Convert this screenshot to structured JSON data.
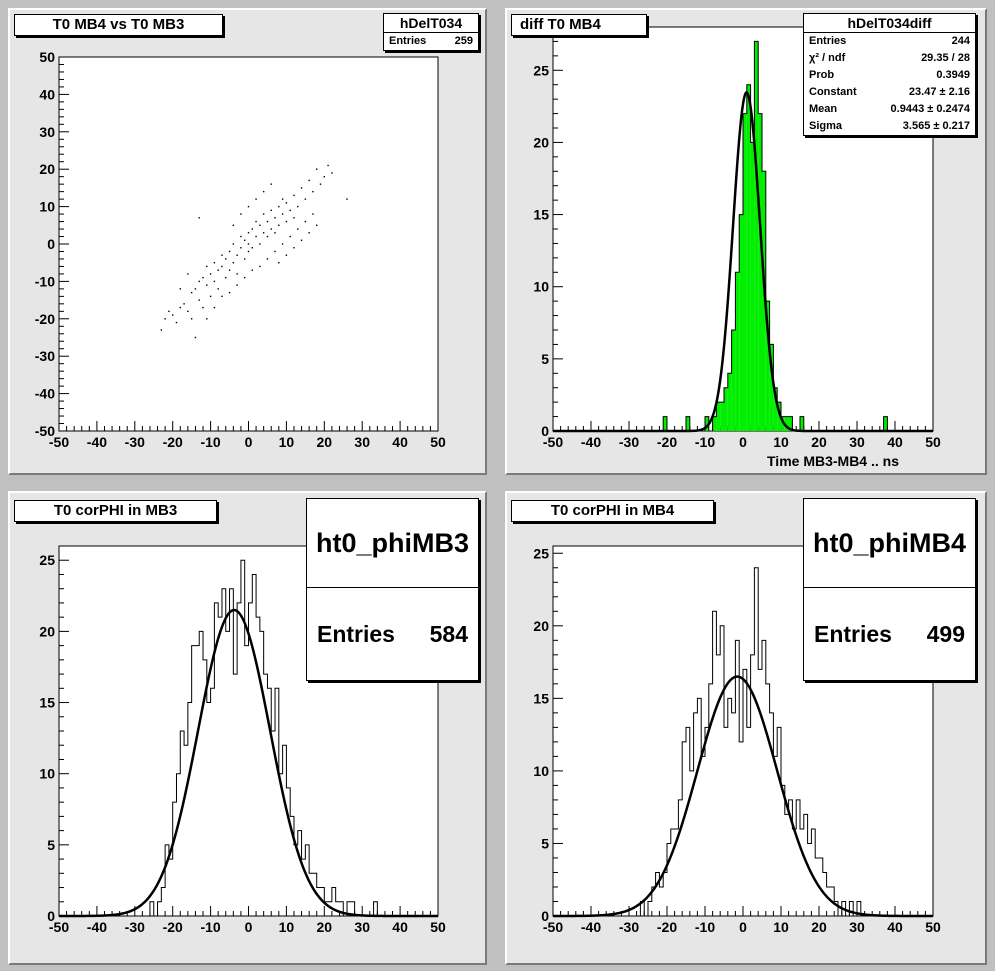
{
  "chart_data": [
    {
      "type": "scatter",
      "title": "T0 MB4 vs T0 MB3",
      "stats": {
        "name": "hDelT034",
        "entries_label": "Entries",
        "entries": "259"
      },
      "xlim": [
        -50,
        50
      ],
      "ylim": [
        -50,
        50
      ],
      "xticks": [
        "-50",
        "-40",
        "-30",
        "-20",
        "-10",
        "0",
        "10",
        "20",
        "30",
        "40",
        "50"
      ],
      "yticks": [
        "-50",
        "-40",
        "-30",
        "-20",
        "-10",
        "0",
        "10",
        "20",
        "30",
        "40",
        "50"
      ],
      "points": [
        [
          -23,
          -23
        ],
        [
          -22,
          -20
        ],
        [
          -21,
          -18
        ],
        [
          -20,
          -19
        ],
        [
          -19,
          -21
        ],
        [
          -18,
          -17
        ],
        [
          -17,
          -16
        ],
        [
          -16,
          -18
        ],
        [
          -15,
          -13
        ],
        [
          -15,
          -20
        ],
        [
          -14,
          -12
        ],
        [
          -14,
          -25
        ],
        [
          -13,
          -15
        ],
        [
          -13,
          -10
        ],
        [
          -12,
          -9
        ],
        [
          -12,
          -17
        ],
        [
          -11,
          -11
        ],
        [
          -11,
          -6
        ],
        [
          -10,
          -14
        ],
        [
          -10,
          -8
        ],
        [
          -9,
          -10
        ],
        [
          -9,
          -5
        ],
        [
          -8,
          -7
        ],
        [
          -8,
          -12
        ],
        [
          -7,
          -6
        ],
        [
          -7,
          -3
        ],
        [
          -6,
          -9
        ],
        [
          -6,
          -4
        ],
        [
          -5,
          -2
        ],
        [
          -5,
          -7
        ],
        [
          -4,
          -5
        ],
        [
          -4,
          0
        ],
        [
          -3,
          -3
        ],
        [
          -3,
          -8
        ],
        [
          -2,
          -1
        ],
        [
          -2,
          2
        ],
        [
          -1,
          -4
        ],
        [
          -1,
          1
        ],
        [
          0,
          0
        ],
        [
          0,
          3
        ],
        [
          0,
          -2
        ],
        [
          1,
          4
        ],
        [
          1,
          -1
        ],
        [
          2,
          2
        ],
        [
          2,
          6
        ],
        [
          3,
          0
        ],
        [
          3,
          5
        ],
        [
          4,
          3
        ],
        [
          4,
          8
        ],
        [
          5,
          2
        ],
        [
          5,
          6
        ],
        [
          6,
          4
        ],
        [
          6,
          9
        ],
        [
          7,
          7
        ],
        [
          7,
          3
        ],
        [
          8,
          5
        ],
        [
          8,
          10
        ],
        [
          9,
          8
        ],
        [
          9,
          12
        ],
        [
          10,
          6
        ],
        [
          10,
          11
        ],
        [
          11,
          9
        ],
        [
          12,
          13
        ],
        [
          12,
          7
        ],
        [
          13,
          10
        ],
        [
          14,
          15
        ],
        [
          15,
          12
        ],
        [
          16,
          17
        ],
        [
          17,
          14
        ],
        [
          18,
          20
        ],
        [
          19,
          16
        ],
        [
          20,
          18
        ],
        [
          21,
          21
        ],
        [
          22,
          19
        ],
        [
          26,
          12
        ],
        [
          -13,
          7
        ],
        [
          -11,
          -20
        ],
        [
          -9,
          -17
        ],
        [
          -7,
          -14
        ],
        [
          -5,
          -13
        ],
        [
          -3,
          -11
        ],
        [
          -1,
          -9
        ],
        [
          1,
          -7
        ],
        [
          3,
          -6
        ],
        [
          5,
          -4
        ],
        [
          7,
          -2
        ],
        [
          9,
          0
        ],
        [
          11,
          2
        ],
        [
          13,
          4
        ],
        [
          15,
          6
        ],
        [
          17,
          8
        ],
        [
          -18,
          -12
        ],
        [
          -16,
          -8
        ],
        [
          -4,
          5
        ],
        [
          -2,
          8
        ],
        [
          0,
          10
        ],
        [
          2,
          12
        ],
        [
          4,
          14
        ],
        [
          6,
          16
        ],
        [
          8,
          -5
        ],
        [
          10,
          -3
        ],
        [
          12,
          -1
        ],
        [
          14,
          1
        ],
        [
          16,
          3
        ],
        [
          18,
          5
        ]
      ]
    },
    {
      "type": "bar",
      "title": "diff T0 MB4",
      "xlabel": "Time MB3-MB4  ..  ns",
      "stats": {
        "name": "hDelT034diff",
        "rows": [
          {
            "label": "Entries",
            "value": "244"
          },
          {
            "label": "χ² / ndf",
            "value": "29.35 / 28"
          },
          {
            "label": "Prob",
            "value": "0.3949"
          },
          {
            "label": "Constant",
            "value": "23.47 ± 2.16"
          },
          {
            "label": "Mean",
            "value": "0.9443 ± 0.2474"
          },
          {
            "label": "Sigma",
            "value": "3.565 ± 0.217"
          }
        ]
      },
      "xlim": [
        -50,
        50
      ],
      "ylim": [
        0,
        28
      ],
      "xticks": [
        "-50",
        "-40",
        "-30",
        "-20",
        "-10",
        "0",
        "10",
        "20",
        "30",
        "40",
        "50"
      ],
      "yticks": [
        "0",
        "5",
        "10",
        "15",
        "20",
        "25"
      ],
      "bin_width": 1,
      "bins": [
        [
          -21,
          1
        ],
        [
          -15,
          1
        ],
        [
          -10,
          1
        ],
        [
          -8,
          1
        ],
        [
          -7,
          2
        ],
        [
          -6,
          2
        ],
        [
          -5,
          3
        ],
        [
          -4,
          4
        ],
        [
          -3,
          7
        ],
        [
          -2,
          11
        ],
        [
          -1,
          15
        ],
        [
          0,
          22
        ],
        [
          1,
          24
        ],
        [
          2,
          20
        ],
        [
          3,
          27
        ],
        [
          4,
          22
        ],
        [
          5,
          18
        ],
        [
          6,
          9
        ],
        [
          7,
          6
        ],
        [
          8,
          3
        ],
        [
          9,
          2
        ],
        [
          10,
          1
        ],
        [
          11,
          1
        ],
        [
          12,
          1
        ],
        [
          15,
          1
        ],
        [
          37,
          1
        ]
      ],
      "fit": {
        "constant": 23.47,
        "mean": 0.9443,
        "sigma": 3.565
      }
    },
    {
      "type": "bar",
      "title": "T0 corPHI in MB3",
      "stats": {
        "name": "ht0_phiMB3",
        "entries_label": "Entries",
        "entries": "584"
      },
      "xlim": [
        -50,
        50
      ],
      "ylim": [
        0,
        26
      ],
      "xticks": [
        "-50",
        "-40",
        "-30",
        "-20",
        "-10",
        "0",
        "10",
        "20",
        "30",
        "40",
        "50"
      ],
      "yticks": [
        "0",
        "5",
        "10",
        "15",
        "20",
        "25"
      ],
      "bin_width": 1,
      "bins": [
        [
          -26,
          1
        ],
        [
          -25,
          0
        ],
        [
          -24,
          1
        ],
        [
          -23,
          2
        ],
        [
          -22,
          5
        ],
        [
          -21,
          4
        ],
        [
          -20,
          8
        ],
        [
          -19,
          10
        ],
        [
          -18,
          13
        ],
        [
          -17,
          12
        ],
        [
          -16,
          15
        ],
        [
          -15,
          19
        ],
        [
          -14,
          19
        ],
        [
          -13,
          20
        ],
        [
          -12,
          18
        ],
        [
          -11,
          15
        ],
        [
          -10,
          16
        ],
        [
          -9,
          22
        ],
        [
          -8,
          21
        ],
        [
          -7,
          23
        ],
        [
          -6,
          20
        ],
        [
          -5,
          23
        ],
        [
          -4,
          17
        ],
        [
          -3,
          22
        ],
        [
          -2,
          25
        ],
        [
          -1,
          19
        ],
        [
          0,
          22
        ],
        [
          1,
          24
        ],
        [
          2,
          21
        ],
        [
          3,
          20
        ],
        [
          4,
          17
        ],
        [
          5,
          16
        ],
        [
          6,
          13
        ],
        [
          7,
          16
        ],
        [
          8,
          10
        ],
        [
          9,
          12
        ],
        [
          10,
          9
        ],
        [
          11,
          7
        ],
        [
          12,
          5
        ],
        [
          13,
          6
        ],
        [
          14,
          4
        ],
        [
          15,
          5
        ],
        [
          16,
          3
        ],
        [
          17,
          3
        ],
        [
          18,
          2
        ],
        [
          19,
          2
        ],
        [
          20,
          1
        ],
        [
          21,
          1
        ],
        [
          22,
          2
        ],
        [
          23,
          1
        ],
        [
          24,
          1
        ],
        [
          26,
          1
        ],
        [
          27,
          1
        ],
        [
          33,
          1
        ]
      ],
      "fit": {
        "constant": 21.5,
        "mean": -3.8,
        "sigma": 9.5
      }
    },
    {
      "type": "bar",
      "title": "T0 corPHI in MB4",
      "stats": {
        "name": "ht0_phiMB4",
        "entries_label": "Entries",
        "entries": "499"
      },
      "xlim": [
        -50,
        50
      ],
      "ylim": [
        0,
        25.5
      ],
      "xticks": [
        "-50",
        "-40",
        "-30",
        "-20",
        "-10",
        "0",
        "10",
        "20",
        "30",
        "40",
        "50"
      ],
      "yticks": [
        "0",
        "5",
        "10",
        "15",
        "20",
        "25"
      ],
      "bin_width": 1,
      "bins": [
        [
          -27,
          1
        ],
        [
          -25,
          1
        ],
        [
          -24,
          2
        ],
        [
          -23,
          3
        ],
        [
          -22,
          2
        ],
        [
          -21,
          3
        ],
        [
          -20,
          5
        ],
        [
          -19,
          6
        ],
        [
          -18,
          6
        ],
        [
          -17,
          8
        ],
        [
          -16,
          12
        ],
        [
          -15,
          13
        ],
        [
          -14,
          10
        ],
        [
          -13,
          14
        ],
        [
          -12,
          15
        ],
        [
          -11,
          11
        ],
        [
          -10,
          13
        ],
        [
          -9,
          16
        ],
        [
          -8,
          21
        ],
        [
          -7,
          18
        ],
        [
          -6,
          20
        ],
        [
          -5,
          13
        ],
        [
          -4,
          15
        ],
        [
          -3,
          14
        ],
        [
          -2,
          19
        ],
        [
          -1,
          12
        ],
        [
          0,
          17
        ],
        [
          1,
          13
        ],
        [
          2,
          18
        ],
        [
          3,
          24
        ],
        [
          4,
          17
        ],
        [
          5,
          19
        ],
        [
          6,
          16
        ],
        [
          7,
          14
        ],
        [
          8,
          11
        ],
        [
          9,
          13
        ],
        [
          10,
          9
        ],
        [
          11,
          7
        ],
        [
          12,
          8
        ],
        [
          13,
          6
        ],
        [
          14,
          8
        ],
        [
          15,
          6
        ],
        [
          16,
          7
        ],
        [
          17,
          5
        ],
        [
          18,
          6
        ],
        [
          19,
          4
        ],
        [
          20,
          4
        ],
        [
          21,
          3
        ],
        [
          22,
          2
        ],
        [
          23,
          2
        ],
        [
          24,
          1
        ],
        [
          26,
          1
        ],
        [
          28,
          1
        ],
        [
          30,
          1
        ]
      ],
      "fit": {
        "constant": 16.5,
        "mean": -1.5,
        "sigma": 10.5
      }
    }
  ]
}
